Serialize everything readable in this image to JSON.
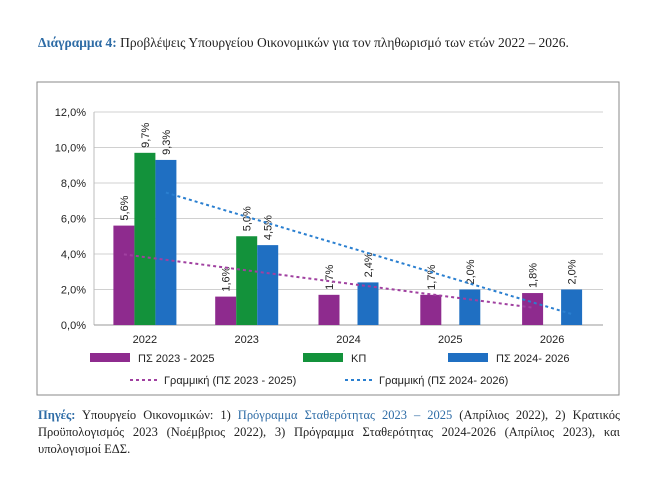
{
  "header": {
    "label": "Διάγραμμα 4:",
    "text": "Προβλέψεις Υπουργείου Οικονομικών για τον πληθωρισμό των ετών 2022 – 2026."
  },
  "source": {
    "label": "Πηγές:",
    "prefix": "Υπουργείο Οικονομικών: 1)",
    "link": "Πρόγραμμα Σταθερότητας 2023 – 2025",
    "rest": "(Απρίλιος 2022), 2) Κρατικός Προϋπολογισμός 2023 (Νοέμβριος 2022), 3) Πρόγραμμα Σταθερότητας 2024-2026 (Απρίλιος 2023), και υπολογισμοί ΕΔΣ."
  },
  "colors": {
    "ps2325": "#8e2b8e",
    "kp": "#13923b",
    "ps2426": "#1f6fc2",
    "trend2325": "#a040a0",
    "trend2426": "#2a7fd0"
  },
  "chart_data": {
    "type": "bar",
    "categories": [
      "2022",
      "2023",
      "2024",
      "2025",
      "2026"
    ],
    "ylim": [
      0,
      12
    ],
    "yticks": [
      "0,0%",
      "2,0%",
      "4,0%",
      "6,0%",
      "8,0%",
      "10,0%",
      "12,0%"
    ],
    "ytick_values": [
      0,
      2,
      4,
      6,
      8,
      10,
      12
    ],
    "grid": true,
    "legend_position": "bottom",
    "series": [
      {
        "name": "ΠΣ 2023 - 2025",
        "color": "#8e2b8e",
        "values": [
          5.6,
          1.6,
          1.7,
          1.7,
          1.8
        ],
        "labels": [
          "5,6%",
          "1,6%",
          "1,7%",
          "1,7%",
          "1,8%"
        ]
      },
      {
        "name": "ΚΠ",
        "color": "#13923b",
        "values": [
          9.7,
          5.0,
          null,
          null,
          null
        ],
        "labels": [
          "9,7%",
          "5,0%",
          "",
          "",
          ""
        ]
      },
      {
        "name": "ΠΣ 2024- 2026",
        "color": "#1f6fc2",
        "values": [
          9.3,
          4.5,
          2.4,
          2.0,
          2.0
        ],
        "labels": [
          "9,3%",
          "4,5%",
          "2,4%",
          "2,0%",
          "2,0%"
        ]
      }
    ],
    "trendlines": [
      {
        "name": "Γραμμική (ΠΣ 2023 - 2025)",
        "of": "ΠΣ 2023 - 2025",
        "color": "#a040a0"
      },
      {
        "name": "Γραμμική (ΠΣ 2024- 2026)",
        "of": "ΠΣ 2024- 2026",
        "color": "#2a7fd0"
      }
    ]
  }
}
